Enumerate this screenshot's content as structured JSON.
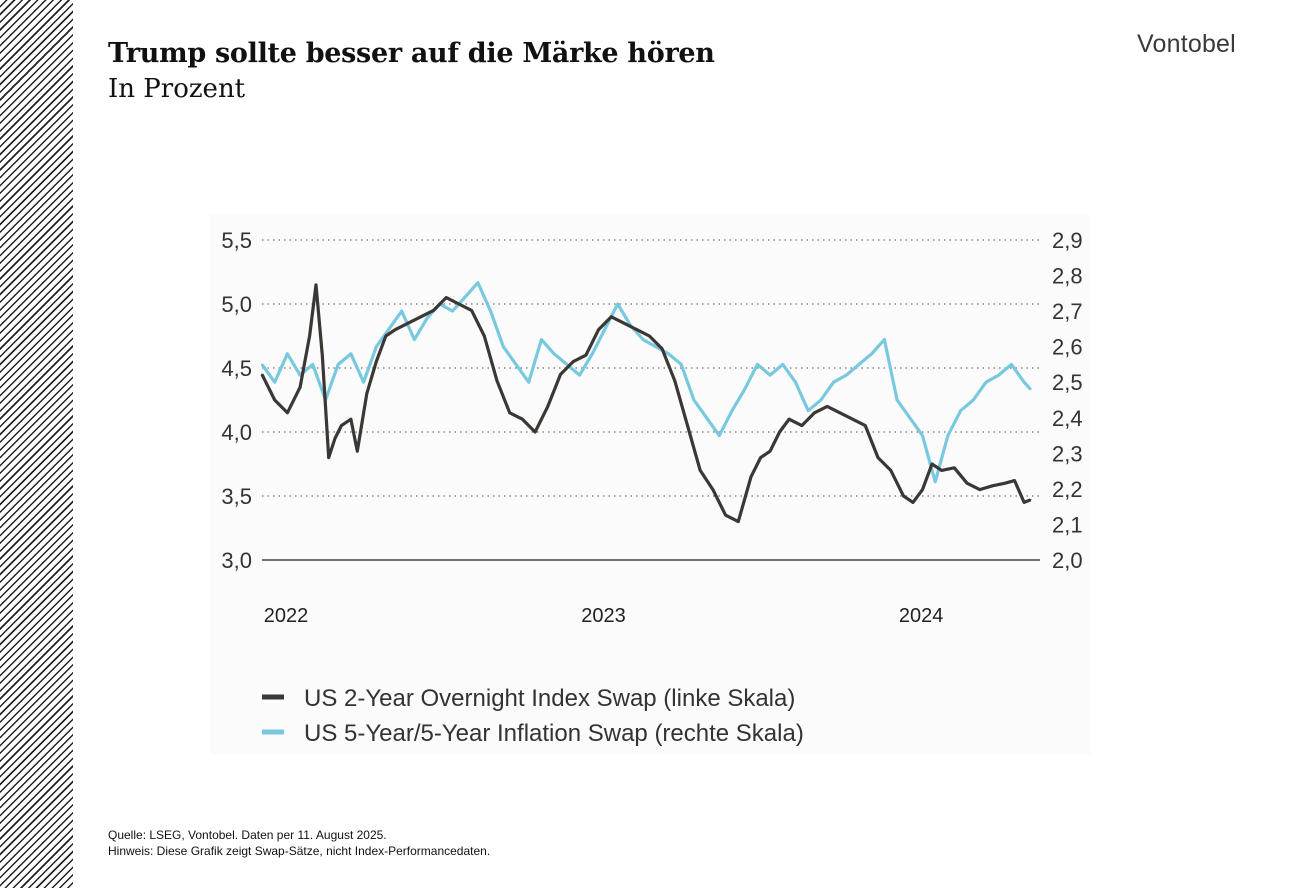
{
  "header": {
    "title": "Trump sollte besser auf die Märke hören",
    "subtitle": "In Prozent",
    "logo": "Vontobel"
  },
  "footer": {
    "source": "Quelle: LSEG, Vontobel. Daten per 11. August 2025.",
    "note": "Hinweis: Diese Grafik zeigt Swap-Sätze, nicht Index-Performancedaten."
  },
  "colors": {
    "ois": "#3b3735",
    "inflation": "#79c9de",
    "grid": "#888888"
  },
  "chart_data": {
    "type": "line",
    "title": "Trump sollte besser auf die Märke hören",
    "subtitle": "In Prozent",
    "left_axis": {
      "ylim": [
        3.0,
        5.5
      ],
      "ticks": [
        5.5,
        5.0,
        4.5,
        4.0,
        3.5,
        3.0
      ],
      "tick_labels": [
        "5,5",
        "5,0",
        "4,5",
        "4,0",
        "3,5",
        "3,0"
      ]
    },
    "right_axis": {
      "ylim": [
        2.0,
        2.9
      ],
      "ticks": [
        2.9,
        2.8,
        2.7,
        2.6,
        2.5,
        2.4,
        2.3,
        2.2,
        2.1,
        2.0
      ],
      "tick_labels": [
        "2,9",
        "2,8",
        "2,7",
        "2,6",
        "2,5",
        "2,4",
        "2,3",
        "2,2",
        "2,1",
        "2,0"
      ]
    },
    "x_axis": {
      "range": [
        2022.0,
        2024.45
      ],
      "ticks": [
        2022.0,
        2023.0,
        2024.0
      ],
      "tick_labels": [
        "2022",
        "2023",
        "2024"
      ]
    },
    "grid": true,
    "legend_position": "bottom-left",
    "series": [
      {
        "name": "US 2-Year Overnight Index Swap (linke Skala)",
        "axis": "left",
        "x": [
          2022.0,
          2022.04,
          2022.08,
          2022.12,
          2022.15,
          2022.17,
          2022.19,
          2022.21,
          2022.23,
          2022.25,
          2022.28,
          2022.3,
          2022.33,
          2022.36,
          2022.39,
          2022.42,
          2022.46,
          2022.5,
          2022.54,
          2022.58,
          2022.62,
          2022.66,
          2022.7,
          2022.74,
          2022.78,
          2022.82,
          2022.86,
          2022.9,
          2022.94,
          2022.98,
          2023.02,
          2023.06,
          2023.1,
          2023.14,
          2023.18,
          2023.22,
          2023.26,
          2023.3,
          2023.34,
          2023.38,
          2023.42,
          2023.46,
          2023.5,
          2023.54,
          2023.57,
          2023.6,
          2023.63,
          2023.66,
          2023.7,
          2023.74,
          2023.78,
          2023.82,
          2023.86,
          2023.9,
          2023.94,
          2023.98,
          2024.02,
          2024.05,
          2024.08,
          2024.11,
          2024.14,
          2024.18,
          2024.22,
          2024.26,
          2024.3,
          2024.34,
          2024.37,
          2024.4,
          2024.42
        ],
        "values": [
          4.45,
          4.25,
          4.15,
          4.35,
          4.75,
          5.15,
          4.6,
          3.8,
          3.95,
          4.05,
          4.1,
          3.85,
          4.3,
          4.55,
          4.75,
          4.8,
          4.85,
          4.9,
          4.95,
          5.05,
          5.0,
          4.95,
          4.75,
          4.4,
          4.15,
          4.1,
          4.0,
          4.2,
          4.45,
          4.55,
          4.6,
          4.8,
          4.9,
          4.85,
          4.8,
          4.75,
          4.65,
          4.4,
          4.05,
          3.7,
          3.55,
          3.35,
          3.3,
          3.65,
          3.8,
          3.85,
          4.0,
          4.1,
          4.05,
          4.15,
          4.2,
          4.15,
          4.1,
          4.05,
          3.8,
          3.7,
          3.5,
          3.45,
          3.55,
          3.75,
          3.7,
          3.72,
          3.6,
          3.55,
          3.58,
          3.6,
          3.62,
          3.45,
          3.47
        ]
      },
      {
        "name": "US 5-Year/5-Year Inflation Swap (rechte Skala)",
        "axis": "right",
        "x": [
          2022.0,
          2022.04,
          2022.08,
          2022.12,
          2022.16,
          2022.2,
          2022.24,
          2022.28,
          2022.32,
          2022.36,
          2022.4,
          2022.44,
          2022.48,
          2022.52,
          2022.56,
          2022.6,
          2022.64,
          2022.68,
          2022.72,
          2022.76,
          2022.8,
          2022.84,
          2022.88,
          2022.92,
          2022.96,
          2023.0,
          2023.04,
          2023.08,
          2023.12,
          2023.16,
          2023.2,
          2023.24,
          2023.28,
          2023.32,
          2023.36,
          2023.4,
          2023.44,
          2023.48,
          2023.52,
          2023.56,
          2023.6,
          2023.64,
          2023.68,
          2023.72,
          2023.76,
          2023.8,
          2023.84,
          2023.88,
          2023.92,
          2023.96,
          2024.0,
          2024.04,
          2024.08,
          2024.12,
          2024.16,
          2024.2,
          2024.24,
          2024.28,
          2024.32,
          2024.36,
          2024.4,
          2024.42
        ],
        "values": [
          2.55,
          2.5,
          2.58,
          2.52,
          2.55,
          2.45,
          2.55,
          2.58,
          2.5,
          2.6,
          2.65,
          2.7,
          2.62,
          2.68,
          2.72,
          2.7,
          2.74,
          2.78,
          2.7,
          2.6,
          2.55,
          2.5,
          2.62,
          2.58,
          2.55,
          2.52,
          2.58,
          2.65,
          2.72,
          2.66,
          2.62,
          2.6,
          2.58,
          2.55,
          2.45,
          2.4,
          2.35,
          2.42,
          2.48,
          2.55,
          2.52,
          2.55,
          2.5,
          2.42,
          2.45,
          2.5,
          2.52,
          2.55,
          2.58,
          2.62,
          2.45,
          2.4,
          2.35,
          2.22,
          2.35,
          2.42,
          2.45,
          2.5,
          2.52,
          2.55,
          2.5,
          2.48
        ]
      }
    ]
  }
}
